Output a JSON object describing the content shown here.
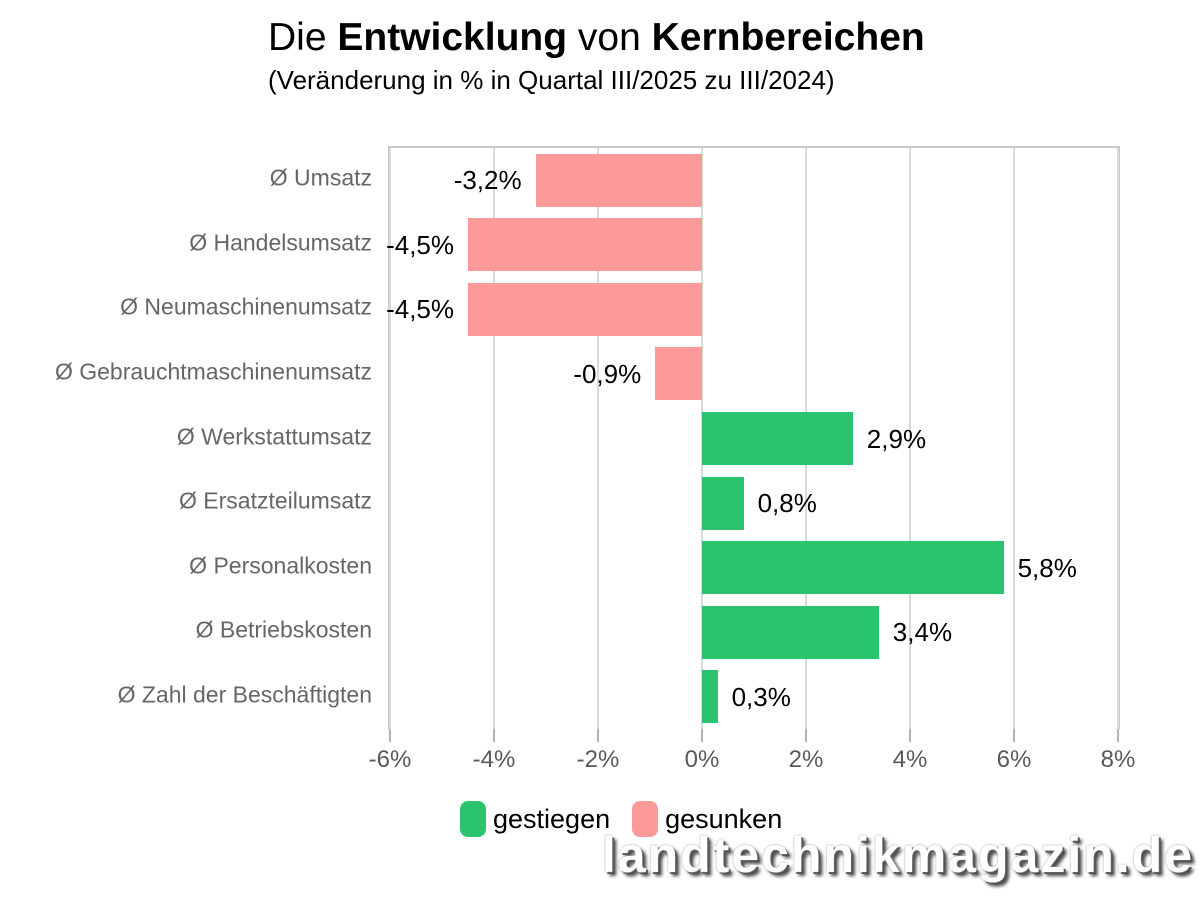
{
  "title": {
    "normal1": "Die ",
    "bold1": "Entwicklung",
    "normal2": " von ",
    "bold2": "Kernbereichen"
  },
  "subtitle": "(Veränderung in % in Quartal III/2025 zu III/2024)",
  "legend": [
    {
      "label": "gestiegen",
      "color": "#2BC46E"
    },
    {
      "label": "gesunken",
      "color": "#FC9999"
    }
  ],
  "watermark": "landtechnikmagazin.de",
  "chart_data": {
    "type": "bar",
    "orientation": "horizontal",
    "title": "Die Entwicklung von Kernbereichen",
    "subtitle": "(Veränderung in % in Quartal III/2025 zu III/2024)",
    "categories": [
      "Ø Umsatz",
      "Ø Handelsumsatz",
      "Ø Neumaschinenumsatz",
      "Ø Gebrauchtmaschinenumsatz",
      "Ø Werkstattumsatz",
      "Ø Ersatzteilumsatz",
      "Ø Personalkosten",
      "Ø Betriebskosten",
      "Ø Zahl der Beschäftigten"
    ],
    "values": [
      -3.2,
      -4.5,
      -4.5,
      -0.9,
      2.9,
      0.8,
      5.8,
      3.4,
      0.3
    ],
    "labels": [
      "-3,2%",
      "-4,5%",
      "-4,5%",
      "-0,9%",
      "2,9%",
      "0,8%",
      "5,8%",
      "3,4%",
      "0,3%"
    ],
    "xlabel": "",
    "ylabel": "",
    "xlim": [
      -6,
      8
    ],
    "xtick_values": [
      -6,
      -4,
      -2,
      0,
      2,
      4,
      6,
      8
    ],
    "xticks": [
      "-6%",
      "-4%",
      "-2%",
      "0%",
      "2%",
      "4%",
      "6%",
      "8%"
    ],
    "grid": true,
    "grid_color": "#d9d9d9",
    "legend_position": "bottom",
    "colors": {
      "positive": "#2BC46E",
      "negative": "#FC9999"
    }
  }
}
